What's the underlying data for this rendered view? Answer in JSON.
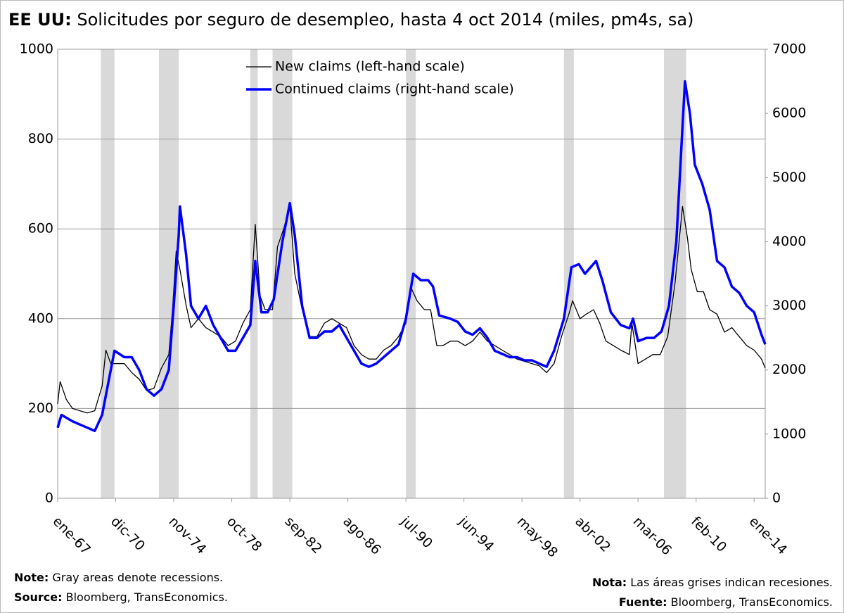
{
  "chart_data": {
    "type": "line",
    "title": {
      "bold": "EE UU:",
      "text": "Solicitudes por seguro de desempleo, hasta 4 oct 2014 (miles, pm4s, sa)"
    },
    "xlim": [
      "1967-01",
      "2014-10"
    ],
    "xticks": [
      {
        "value": "1967-01",
        "label": "ene-67"
      },
      {
        "value": "1970-12",
        "label": "dic-70"
      },
      {
        "value": "1974-11",
        "label": "nov-74"
      },
      {
        "value": "1978-10",
        "label": "oct-78"
      },
      {
        "value": "1982-09",
        "label": "sep-82"
      },
      {
        "value": "1986-08",
        "label": "ago-86"
      },
      {
        "value": "1990-07",
        "label": "jul-90"
      },
      {
        "value": "1994-06",
        "label": "jun-94"
      },
      {
        "value": "1998-05",
        "label": "may-98"
      },
      {
        "value": "2002-04",
        "label": "abr-02"
      },
      {
        "value": "2006-03",
        "label": "mar-06"
      },
      {
        "value": "2010-02",
        "label": "feb-10"
      },
      {
        "value": "2014-01",
        "label": "ene-14"
      }
    ],
    "ylim": [
      0,
      1000
    ],
    "yticks": [
      0,
      200,
      400,
      600,
      800,
      1000
    ],
    "y2lim": [
      0,
      7000
    ],
    "y2ticks": [
      0,
      1000,
      2000,
      3000,
      4000,
      5000,
      6000,
      7000
    ],
    "grid": true,
    "legend": "top",
    "recession_color": "#d9d9d9",
    "recessions": [
      [
        "1969-12",
        "1970-11"
      ],
      [
        "1973-11",
        "1975-03"
      ],
      [
        "1980-01",
        "1980-07"
      ],
      [
        "1981-07",
        "1982-11"
      ],
      [
        "1990-07",
        "1991-03"
      ],
      [
        "2001-03",
        "2001-11"
      ],
      [
        "2007-12",
        "2009-06"
      ]
    ],
    "series": [
      {
        "name": "New claims (left-hand scale)",
        "color": "#000000",
        "width": 1.3,
        "x": [
          "1967-01",
          "1967-03",
          "1967-08",
          "1968-01",
          "1968-07",
          "1969-01",
          "1969-07",
          "1970-01",
          "1970-04",
          "1970-08",
          "1971-01",
          "1971-07",
          "1972-01",
          "1972-07",
          "1973-01",
          "1973-07",
          "1974-01",
          "1974-07",
          "1974-10",
          "1975-01",
          "1975-04",
          "1975-09",
          "1976-01",
          "1976-07",
          "1977-01",
          "1977-07",
          "1978-01",
          "1978-07",
          "1979-01",
          "1979-07",
          "1980-01",
          "1980-05",
          "1980-09",
          "1981-01",
          "1981-07",
          "1981-11",
          "1982-04",
          "1982-09",
          "1983-01",
          "1983-07",
          "1984-01",
          "1984-07",
          "1985-01",
          "1985-07",
          "1986-01",
          "1986-07",
          "1987-01",
          "1987-07",
          "1988-01",
          "1988-07",
          "1989-01",
          "1989-07",
          "1990-01",
          "1990-07",
          "1990-11",
          "1991-04",
          "1991-10",
          "1992-03",
          "1992-08",
          "1993-01",
          "1993-07",
          "1994-01",
          "1994-07",
          "1995-01",
          "1995-07",
          "1996-01",
          "1996-07",
          "1997-01",
          "1997-07",
          "1998-01",
          "1998-07",
          "1999-01",
          "1999-07",
          "2000-01",
          "2000-07",
          "2001-01",
          "2001-07",
          "2001-10",
          "2002-04",
          "2002-09",
          "2003-03",
          "2003-08",
          "2004-01",
          "2004-07",
          "2005-01",
          "2005-08",
          "2005-10",
          "2006-03",
          "2006-09",
          "2007-03",
          "2007-09",
          "2008-03",
          "2008-09",
          "2009-03",
          "2009-07",
          "2009-10",
          "2010-03",
          "2010-08",
          "2011-01",
          "2011-07",
          "2012-01",
          "2012-07",
          "2013-01",
          "2013-07",
          "2014-01",
          "2014-07",
          "2014-10"
        ],
        "values": [
          210,
          260,
          220,
          200,
          195,
          190,
          195,
          250,
          330,
          300,
          300,
          300,
          280,
          265,
          240,
          245,
          290,
          320,
          420,
          550,
          510,
          430,
          380,
          400,
          380,
          370,
          360,
          340,
          350,
          390,
          420,
          610,
          450,
          420,
          420,
          560,
          600,
          650,
          500,
          420,
          360,
          360,
          390,
          400,
          390,
          380,
          340,
          320,
          310,
          310,
          330,
          340,
          360,
          390,
          470,
          440,
          420,
          420,
          340,
          340,
          350,
          350,
          340,
          350,
          370,
          350,
          340,
          330,
          320,
          310,
          305,
          300,
          295,
          280,
          300,
          360,
          410,
          440,
          400,
          410,
          420,
          390,
          350,
          340,
          330,
          320,
          390,
          300,
          310,
          320,
          320,
          360,
          480,
          650,
          580,
          510,
          460,
          460,
          420,
          410,
          370,
          380,
          360,
          340,
          330,
          310,
          290
        ]
      },
      {
        "name": "Continued claims (right-hand scale)",
        "color": "#0000ff",
        "width": 3.5,
        "axis": "y2",
        "x": [
          "1967-01",
          "1967-04",
          "1968-01",
          "1968-07",
          "1969-01",
          "1969-07",
          "1970-01",
          "1970-07",
          "1970-11",
          "1971-07",
          "1972-01",
          "1972-07",
          "1973-01",
          "1973-07",
          "1974-01",
          "1974-07",
          "1974-11",
          "1975-03",
          "1975-04",
          "1975-09",
          "1976-01",
          "1976-07",
          "1977-01",
          "1977-07",
          "1978-01",
          "1978-07",
          "1979-01",
          "1979-07",
          "1980-01",
          "1980-05",
          "1980-10",
          "1981-03",
          "1981-08",
          "1982-03",
          "1982-09",
          "1983-01",
          "1983-07",
          "1984-01",
          "1984-07",
          "1985-01",
          "1985-07",
          "1986-01",
          "1986-07",
          "1987-01",
          "1987-07",
          "1988-01",
          "1988-07",
          "1989-01",
          "1989-07",
          "1990-01",
          "1990-07",
          "1991-01",
          "1991-07",
          "1992-01",
          "1992-05",
          "1992-10",
          "1993-07",
          "1994-01",
          "1994-07",
          "1995-01",
          "1995-07",
          "1996-01",
          "1996-07",
          "1997-01",
          "1997-07",
          "1998-01",
          "1998-07",
          "1999-01",
          "1999-07",
          "2000-01",
          "2000-07",
          "2001-03",
          "2001-09",
          "2002-03",
          "2002-08",
          "2003-05",
          "2003-10",
          "2004-05",
          "2005-01",
          "2005-08",
          "2005-11",
          "2006-03",
          "2006-10",
          "2007-04",
          "2007-10",
          "2008-04",
          "2008-10",
          "2009-03",
          "2009-05",
          "2009-09",
          "2010-01",
          "2010-07",
          "2011-01",
          "2011-07",
          "2012-01",
          "2012-07",
          "2013-01",
          "2013-07",
          "2014-01",
          "2014-07",
          "2014-10"
        ],
        "values": [
          1100,
          1300,
          1200,
          1150,
          1100,
          1050,
          1300,
          1900,
          2300,
          2200,
          2200,
          2000,
          1700,
          1600,
          1700,
          2000,
          3000,
          4100,
          4550,
          3800,
          3000,
          2800,
          3000,
          2700,
          2500,
          2300,
          2300,
          2500,
          2700,
          3700,
          2900,
          2900,
          3100,
          4000,
          4600,
          4100,
          3000,
          2500,
          2500,
          2600,
          2600,
          2700,
          2500,
          2300,
          2100,
          2050,
          2100,
          2200,
          2300,
          2400,
          2800,
          3500,
          3400,
          3400,
          3300,
          2850,
          2800,
          2750,
          2600,
          2550,
          2650,
          2500,
          2300,
          2250,
          2200,
          2200,
          2150,
          2150,
          2100,
          2050,
          2300,
          2800,
          3600,
          3650,
          3500,
          3700,
          3400,
          2900,
          2700,
          2650,
          2800,
          2450,
          2500,
          2500,
          2600,
          3000,
          4000,
          5800,
          6500,
          6000,
          5200,
          4900,
          4500,
          3700,
          3600,
          3300,
          3200,
          3000,
          2900,
          2550,
          2400
        ]
      }
    ],
    "notes_left": [
      {
        "bold": "Note:",
        "text": "Gray areas denote recessions."
      },
      {
        "bold": "Source:",
        "text": "Bloomberg, TransEconomics."
      }
    ],
    "notes_right": [
      {
        "bold": "Nota:",
        "text": "Las áreas grises indican recesiones."
      },
      {
        "bold": "Fuente:",
        "text": "Bloomberg, TransEconomics."
      }
    ]
  }
}
